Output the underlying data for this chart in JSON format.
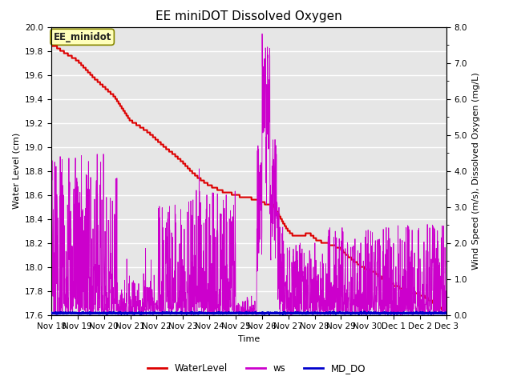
{
  "title": "EE miniDOT Dissolved Oxygen",
  "xlabel": "Time",
  "ylabel_left": "Water Level (cm)",
  "ylabel_right": "Wind Speed (m/s), Dissolved Oxygen (mg/L)",
  "annotation": "EE_minidot",
  "ylim_left": [
    17.6,
    20.0
  ],
  "ylim_right": [
    0.0,
    8.0
  ],
  "background_color": "#e6e6e6",
  "title_fontsize": 11,
  "axis_label_fontsize": 8,
  "tick_fontsize": 7.5,
  "legend_entries": [
    "WaterLevel",
    "ws",
    "MD_DO"
  ],
  "legend_colors": [
    "#dd0000",
    "#cc00cc",
    "#0000cc"
  ],
  "water_level_color": "#dd0000",
  "ws_color": "#cc00cc",
  "md_do_color": "#0000cc",
  "x_tick_labels": [
    "Nov 18",
    "Nov 19",
    "Nov 20",
    "Nov 21",
    "Nov 22",
    "Nov 23",
    "Nov 24",
    "Nov 25",
    "Nov 26",
    "Nov 27",
    "Nov 28",
    "Nov 29",
    "Nov 30",
    "Dec 1",
    "Dec 2",
    "Dec 3"
  ],
  "wl_breakpoints_x": [
    0.0,
    0.15,
    0.4,
    0.7,
    1.0,
    1.3,
    1.6,
    2.0,
    2.4,
    2.7,
    3.0,
    3.3,
    3.7,
    4.0,
    4.3,
    4.7,
    5.0,
    5.3,
    5.6,
    6.0,
    6.3,
    6.5,
    6.7,
    7.0,
    7.3,
    7.6,
    7.9,
    8.1,
    8.4,
    8.6,
    8.8,
    9.0,
    9.2,
    9.5,
    9.8,
    10.1,
    10.4,
    10.7,
    11.0,
    11.2,
    11.5,
    11.8,
    12.0,
    12.3,
    12.6,
    12.9,
    13.2,
    13.5,
    13.8,
    14.1,
    14.4,
    14.7,
    15.0
  ],
  "wl_breakpoints_y": [
    19.84,
    19.84,
    19.8,
    19.76,
    19.72,
    19.65,
    19.58,
    19.5,
    19.42,
    19.32,
    19.22,
    19.18,
    19.12,
    19.06,
    19.0,
    18.93,
    18.87,
    18.8,
    18.74,
    18.68,
    18.65,
    18.63,
    18.62,
    18.6,
    18.58,
    18.57,
    18.55,
    18.53,
    18.52,
    18.45,
    18.37,
    18.3,
    18.26,
    18.26,
    18.28,
    18.22,
    18.2,
    18.18,
    18.15,
    18.1,
    18.05,
    18.0,
    17.98,
    17.95,
    17.9,
    17.86,
    17.83,
    17.8,
    17.78,
    17.76,
    17.72,
    17.67,
    17.62
  ]
}
